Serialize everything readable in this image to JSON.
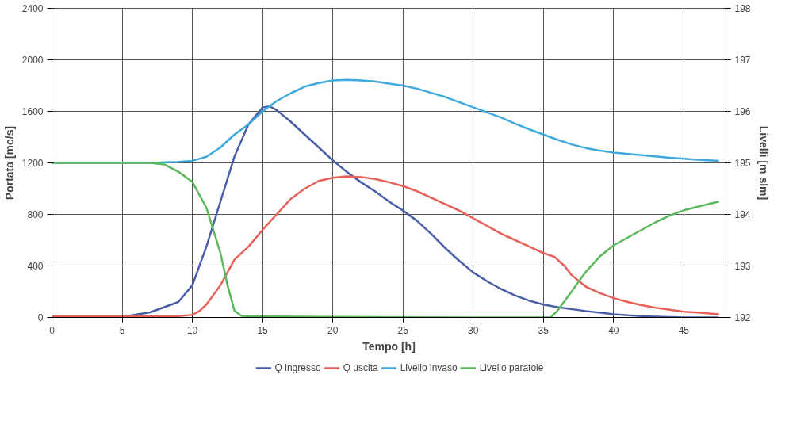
{
  "chart_data": {
    "type": "line",
    "xlabel": "Tempo [h]",
    "ylabel": "Portata [mc/s]",
    "y2label": "Livelli [m slm]",
    "xlim": [
      0,
      48
    ],
    "xticks": [
      0,
      5,
      10,
      15,
      20,
      25,
      30,
      35,
      40,
      45
    ],
    "ylim": [
      0,
      2400
    ],
    "yticks": [
      0,
      400,
      800,
      1200,
      1600,
      2000,
      2400
    ],
    "y2lim": [
      192,
      198
    ],
    "y2ticks": [
      192,
      193,
      194,
      195,
      196,
      197,
      198
    ],
    "grid": true,
    "legend": "bottom",
    "line_style": "solid",
    "marker": "none",
    "series": [
      {
        "name": "Q ingresso",
        "color": "#4a5ea8",
        "x": [
          0,
          5,
          7,
          9,
          10,
          11,
          12,
          13,
          14,
          15,
          15.5,
          16,
          17,
          18,
          19,
          20,
          21,
          22,
          23,
          24,
          25,
          26,
          27,
          28,
          29,
          30,
          31,
          32,
          33,
          34,
          35,
          36,
          38,
          40,
          42,
          45,
          47.5
        ],
        "values": [
          0,
          5,
          40,
          120,
          250,
          550,
          900,
          1250,
          1500,
          1630,
          1640,
          1610,
          1520,
          1420,
          1320,
          1220,
          1130,
          1050,
          980,
          900,
          830,
          750,
          650,
          540,
          440,
          350,
          280,
          220,
          170,
          130,
          100,
          80,
          50,
          25,
          10,
          0,
          0
        ]
      },
      {
        "name": "Q uscita",
        "color": "#e8605a",
        "x": [
          0,
          9,
          10,
          10.5,
          11,
          12,
          13,
          14,
          15,
          16,
          17,
          18,
          19,
          20,
          21,
          22,
          23,
          24,
          25,
          26,
          27,
          28,
          29,
          30,
          31,
          32,
          33,
          34,
          35,
          35.8,
          36.5,
          37,
          38,
          39,
          40,
          41,
          42,
          43,
          44,
          45,
          46,
          47.5
        ],
        "values": [
          10,
          10,
          20,
          50,
          100,
          250,
          450,
          550,
          680,
          800,
          920,
          1000,
          1060,
          1085,
          1095,
          1090,
          1075,
          1050,
          1020,
          980,
          930,
          880,
          830,
          770,
          710,
          650,
          600,
          550,
          500,
          470,
          400,
          330,
          240,
          190,
          150,
          120,
          95,
          75,
          60,
          45,
          38,
          25
        ]
      },
      {
        "name": "Livello invaso",
        "color": "#3fa9dc",
        "axis": "y2",
        "x": [
          0,
          7.5,
          8,
          9,
          10,
          11,
          12,
          13,
          14,
          15,
          16,
          17,
          18,
          19,
          20,
          21,
          22,
          23,
          24,
          25,
          26,
          27,
          28,
          29,
          30,
          31,
          32,
          33,
          34,
          35,
          36,
          37,
          38,
          39,
          40,
          42,
          44,
          46,
          47.5
        ],
        "values": [
          195,
          195,
          195.01,
          195.02,
          195.04,
          195.12,
          195.3,
          195.55,
          195.75,
          196.0,
          196.2,
          196.35,
          196.48,
          196.55,
          196.6,
          196.61,
          196.6,
          196.58,
          196.54,
          196.5,
          196.44,
          196.36,
          196.28,
          196.18,
          196.08,
          195.98,
          195.88,
          195.76,
          195.65,
          195.55,
          195.45,
          195.36,
          195.29,
          195.24,
          195.2,
          195.15,
          195.1,
          195.06,
          195.04
        ]
      },
      {
        "name": "Livello paratoie",
        "color": "#5cb85c",
        "axis": "y2",
        "x": [
          0,
          7,
          8,
          9,
          10,
          11,
          12,
          12.5,
          13,
          13.5,
          15,
          20,
          30,
          35.5,
          36,
          37,
          38,
          39,
          40,
          41,
          42,
          43,
          44,
          45,
          46,
          47.5
        ],
        "values": [
          195,
          195,
          194.97,
          194.83,
          194.63,
          194.13,
          193.25,
          192.63,
          192.13,
          192.03,
          192.02,
          192.01,
          192,
          192,
          192.13,
          192.5,
          192.88,
          193.18,
          193.4,
          193.55,
          193.7,
          193.85,
          193.98,
          194.08,
          194.15,
          194.25
        ]
      }
    ]
  }
}
